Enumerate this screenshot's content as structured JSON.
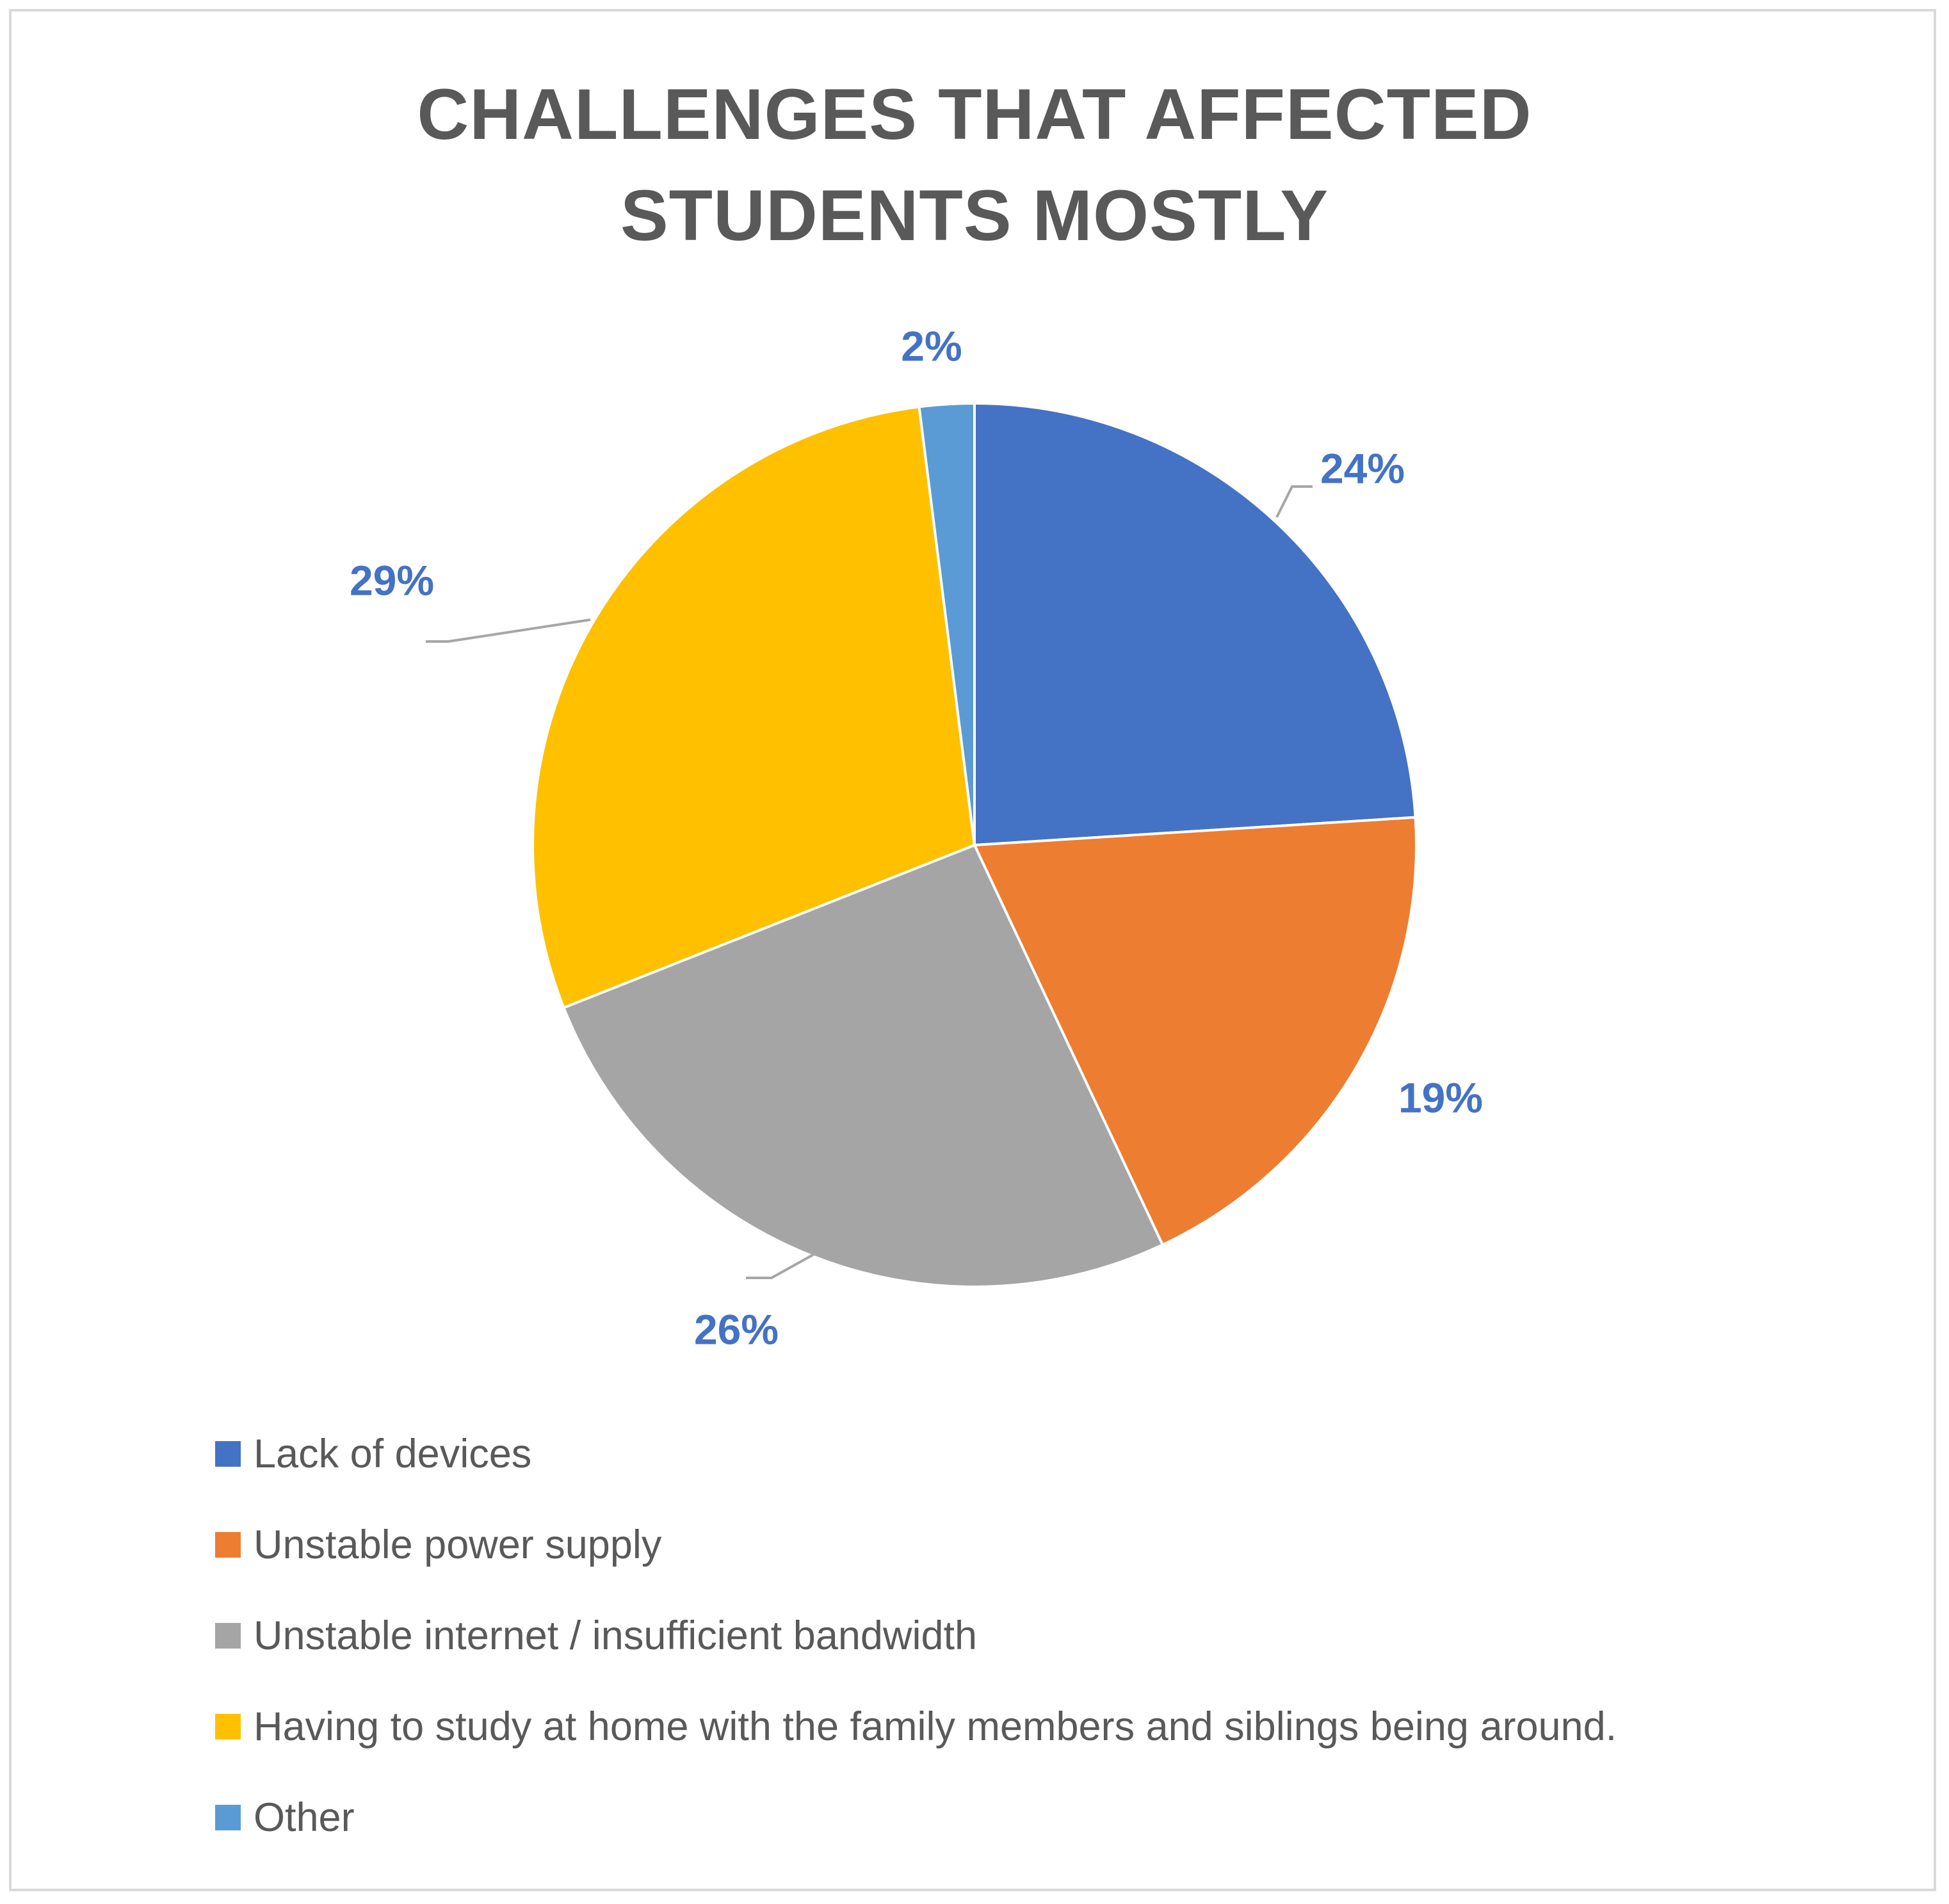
{
  "chart_data": {
    "type": "pie",
    "title": "CHALLENGES THAT AFFECTED STUDENTS MOSTLY",
    "categories": [
      "Lack of devices",
      "Unstable power supply",
      "Unstable internet / insufficient bandwidth",
      "Having to study at home with the family members and siblings being around.",
      "Other"
    ],
    "values": [
      24,
      19,
      26,
      29,
      2
    ],
    "data_labels": [
      "24%",
      "19%",
      "26%",
      "29%",
      "2%"
    ],
    "colors": [
      "#4472C4",
      "#ED7D31",
      "#A5A5A5",
      "#FFC000",
      "#5B9BD5"
    ],
    "label_color": "#4472C4",
    "legend_position": "bottom-left",
    "start_angle": "12 o'clock",
    "direction": "clockwise"
  }
}
